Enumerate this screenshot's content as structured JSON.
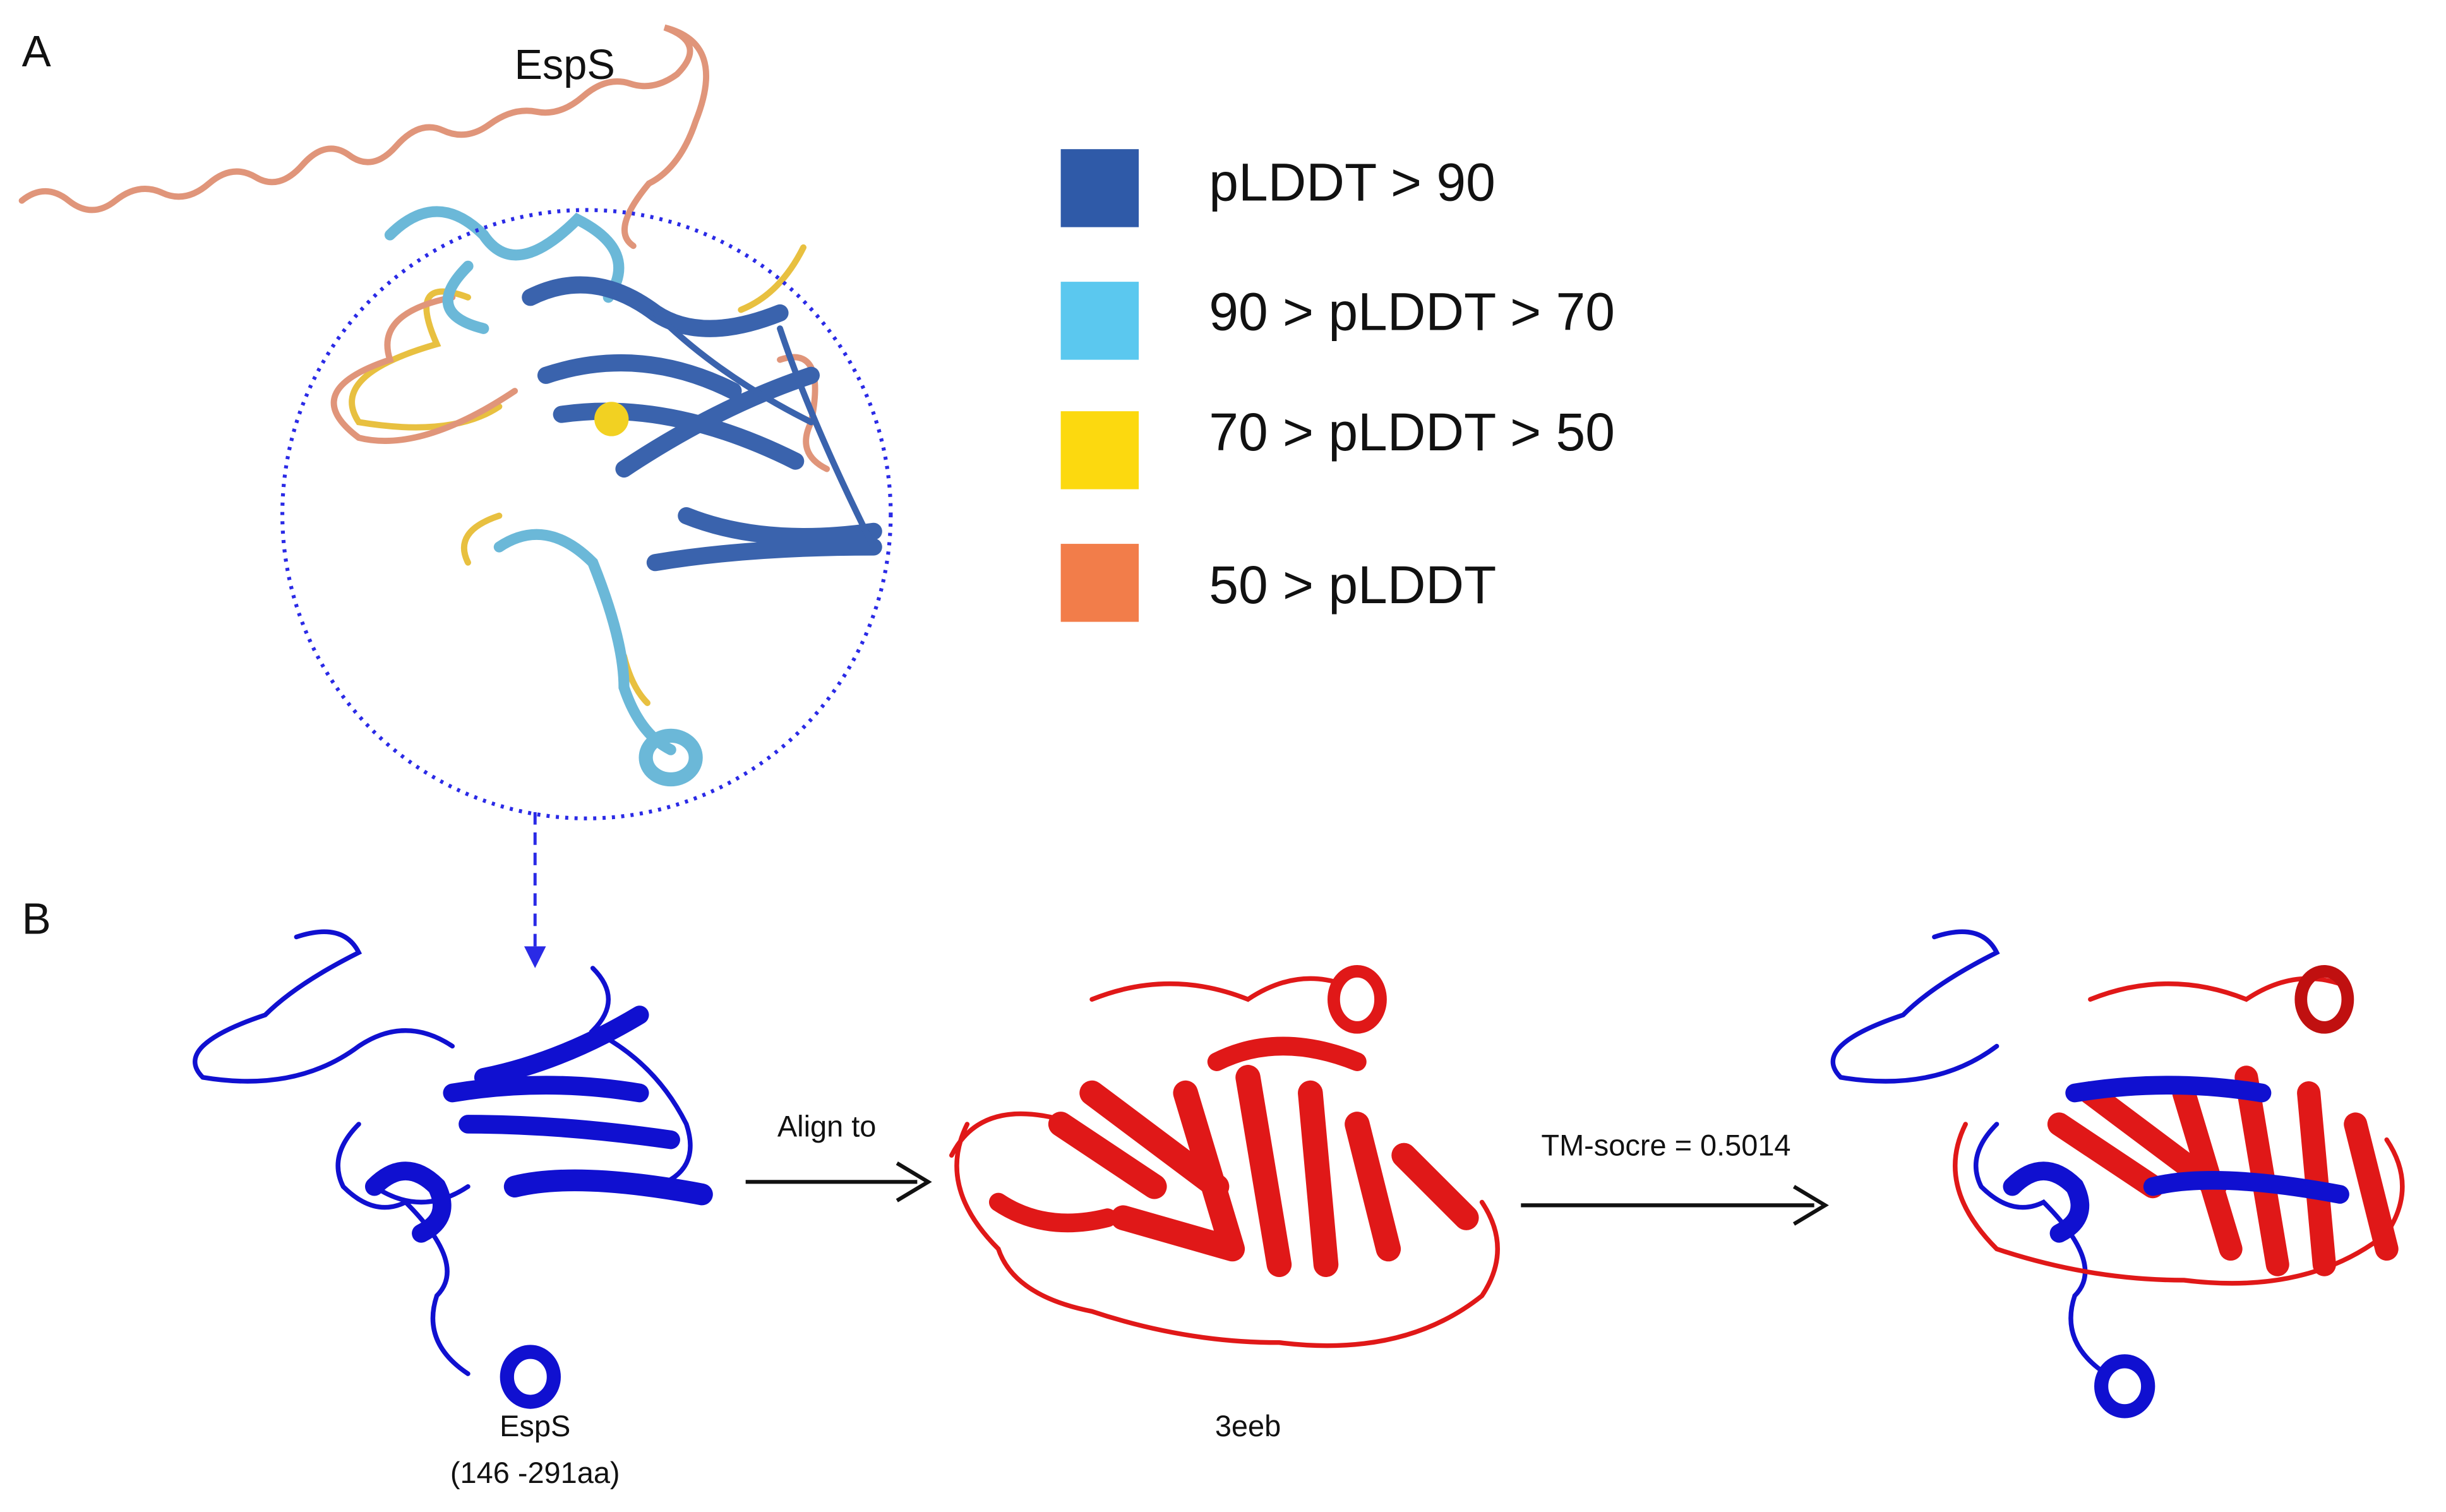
{
  "panel_a": {
    "label": "A",
    "title": "EspS",
    "legend": [
      {
        "label": "pLDDT > 90",
        "color": "#2f5aa8"
      },
      {
        "label": "90 > pLDDT > 70",
        "color": "#5bc8ef"
      },
      {
        "label": "70 > pLDDT > 50",
        "color": "#fcd90f"
      },
      {
        "label": "50 > pLDDT",
        "color": "#f27d4a"
      }
    ]
  },
  "panel_b": {
    "label": "B",
    "arrow_1": "Align to",
    "arrow_2": "TM-socre = 0.5014",
    "structures": [
      {
        "name": "EspS",
        "range": "(146 -291aa)"
      },
      {
        "name": "3eeb"
      }
    ]
  }
}
